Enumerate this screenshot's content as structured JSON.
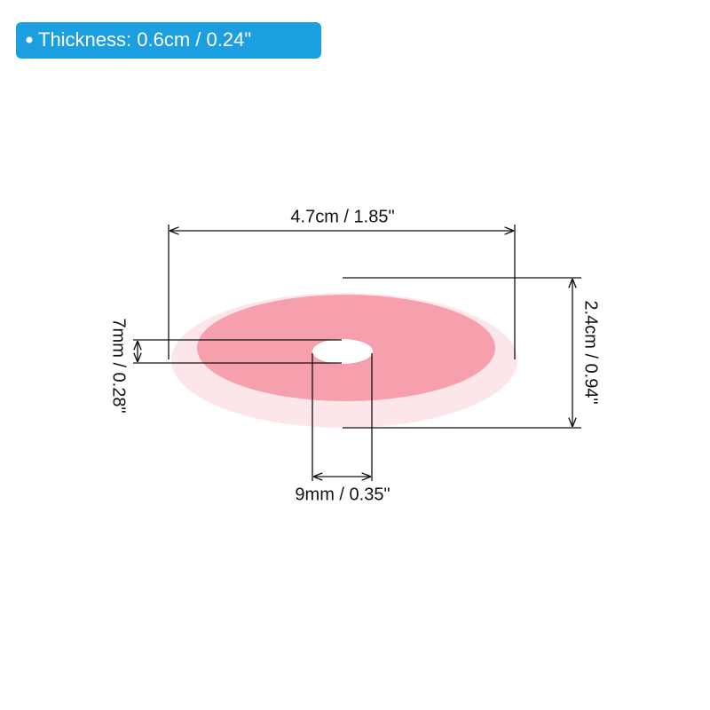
{
  "badge": {
    "text": "Thickness: 0.6cm / 0.24\""
  },
  "dimensions": {
    "width": "4.7cm / 1.85\"",
    "height": "2.4cm / 0.94\"",
    "hole_height": "7mm / 0.28\"",
    "hole_width": "9mm / 0.35\""
  }
}
